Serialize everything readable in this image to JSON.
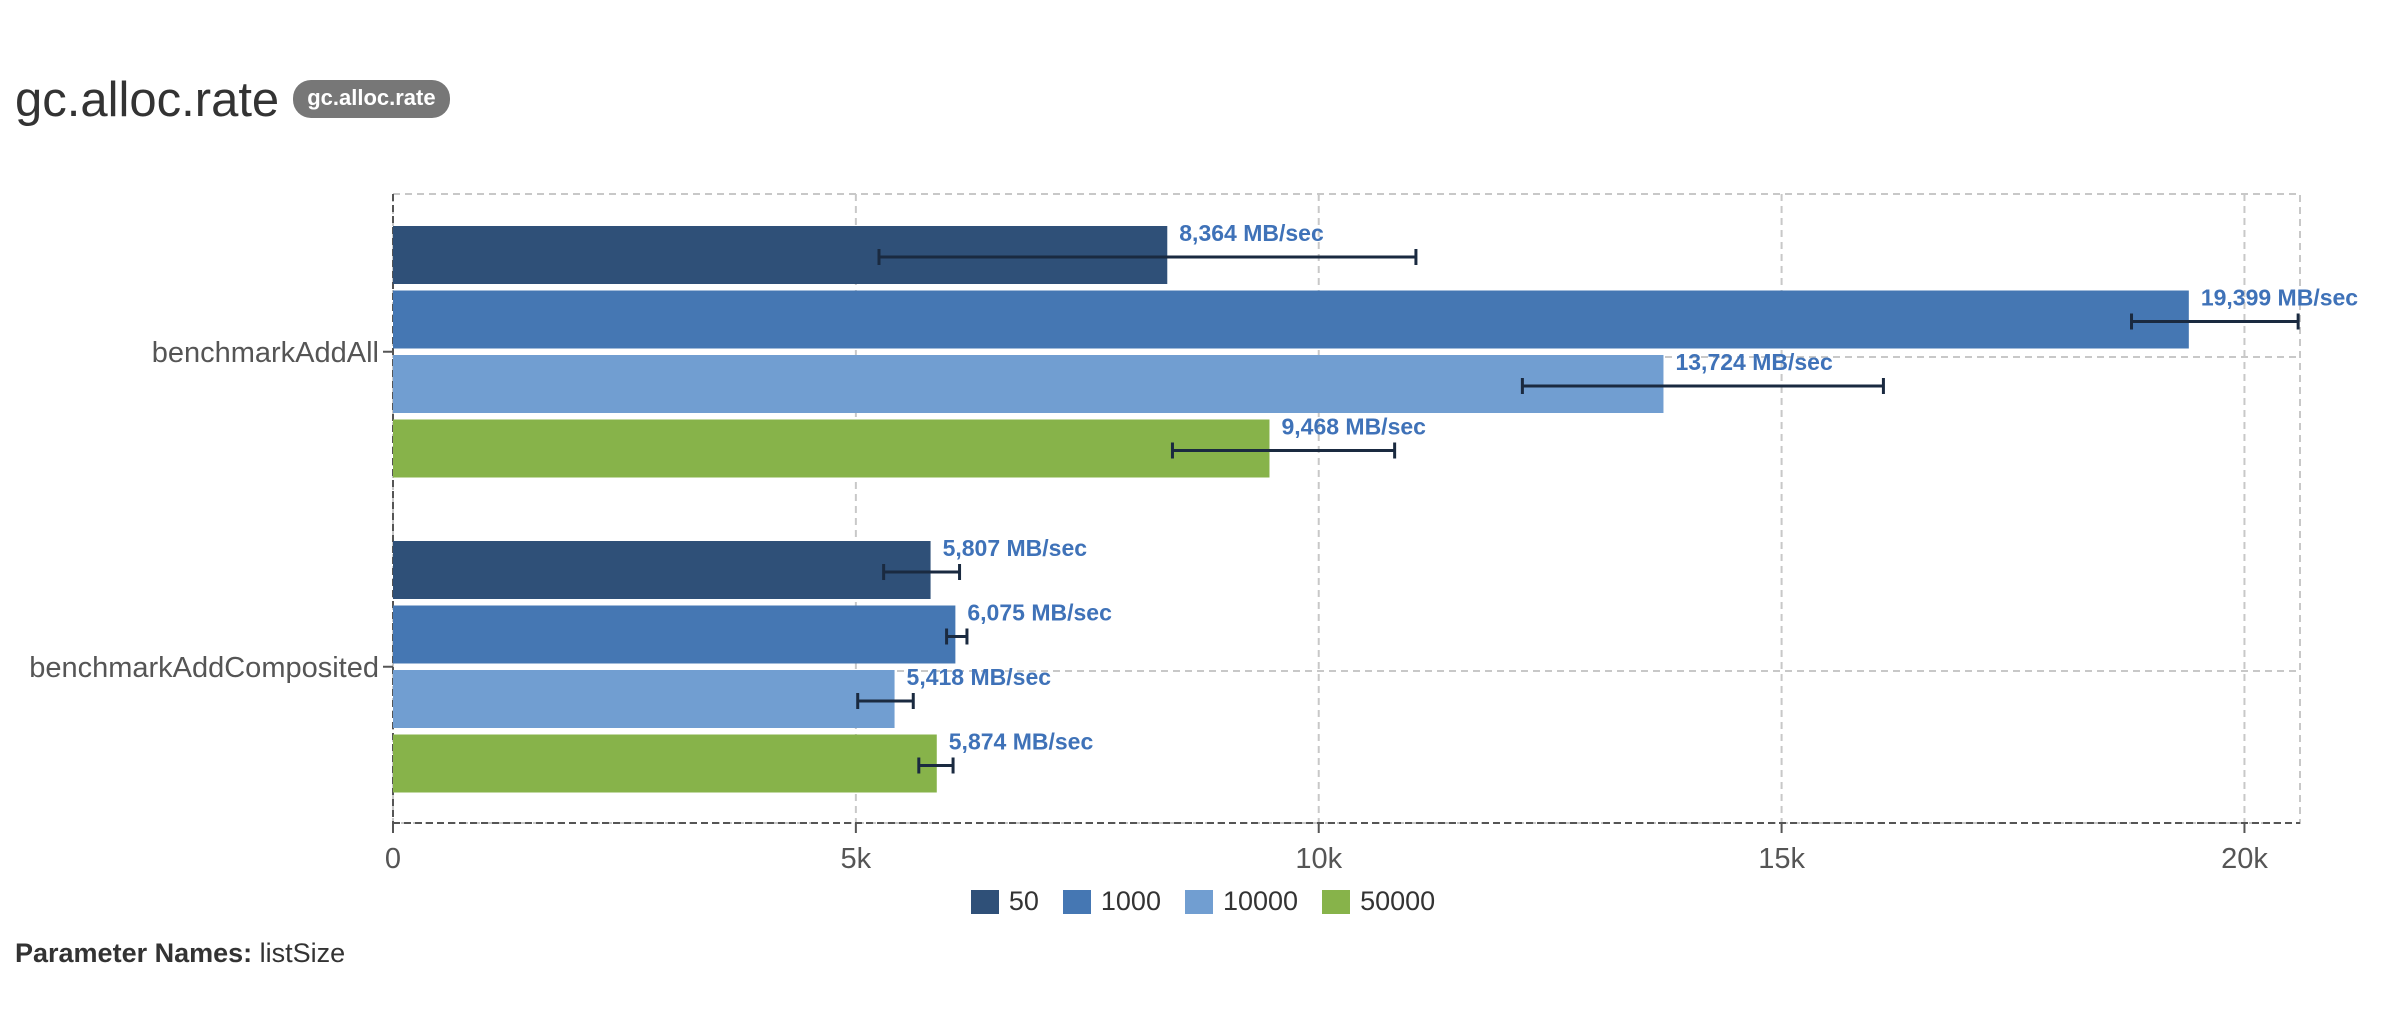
{
  "title": "gc.alloc.rate",
  "badge": "gc.alloc.rate",
  "params": {
    "label": "Parameter Names:",
    "value": "listSize"
  },
  "colors": {
    "50": "#2f5078",
    "1000": "#4577b3",
    "10000": "#719ed1",
    "50000": "#87b34a",
    "label": "#3f72b8",
    "error": "#1a2a40",
    "grid": "#c8c8c8"
  },
  "chart_data": {
    "type": "bar",
    "orientation": "horizontal",
    "categories": [
      "benchmarkAddAll",
      "benchmarkAddComposited"
    ],
    "series": [
      {
        "name": "50",
        "values": [
          8364,
          5807
        ],
        "errors": [
          [
            5250,
            11050
          ],
          [
            5300,
            6120
          ]
        ],
        "labels": [
          "8,364 MB/sec",
          "5,807 MB/sec"
        ]
      },
      {
        "name": "1000",
        "values": [
          19399,
          6075
        ],
        "errors": [
          [
            18780,
            20580
          ],
          [
            5980,
            6200
          ]
        ],
        "labels": [
          "19,399 MB/sec",
          "6,075 MB/sec"
        ]
      },
      {
        "name": "10000",
        "values": [
          13724,
          5418
        ],
        "errors": [
          [
            12200,
            16100
          ],
          [
            5020,
            5620
          ]
        ],
        "labels": [
          "13,724 MB/sec",
          "5,418 MB/sec"
        ]
      },
      {
        "name": "50000",
        "values": [
          9468,
          5874
        ],
        "errors": [
          [
            8420,
            10820
          ],
          [
            5680,
            6050
          ]
        ],
        "labels": [
          "9,468 MB/sec",
          "5,874 MB/sec"
        ]
      }
    ],
    "xlim": [
      0,
      20600
    ],
    "xticks": [
      0,
      5000,
      10000,
      15000,
      20000
    ],
    "xtick_labels": [
      "0",
      "5k",
      "10k",
      "15k",
      "20k"
    ],
    "grid": true,
    "legend_position": "bottom-center"
  }
}
